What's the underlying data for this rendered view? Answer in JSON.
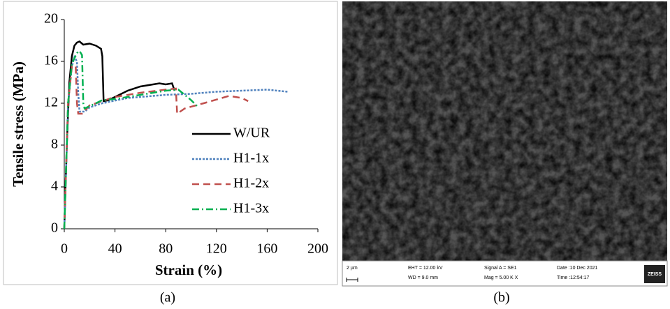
{
  "chart_data": {
    "type": "line",
    "xlabel": "Strain (%)",
    "ylabel": "Tensile stress (MPa)",
    "xlim": [
      0,
      200
    ],
    "ylim": [
      0,
      20
    ],
    "xticks": [
      0,
      40,
      80,
      120,
      160,
      200
    ],
    "yticks": [
      0,
      4,
      8,
      12,
      16,
      20
    ],
    "legend": "center right",
    "series": [
      {
        "name": "W/UR",
        "color": "#000000",
        "style": "solid",
        "x": [
          0,
          2,
          4,
          6,
          8,
          10,
          12,
          15,
          20,
          25,
          29,
          30,
          31,
          35,
          40,
          50,
          60,
          70,
          75,
          80,
          85,
          87
        ],
        "values": [
          0,
          8,
          14,
          16.5,
          17.5,
          17.8,
          17.9,
          17.6,
          17.7,
          17.5,
          17.2,
          16.5,
          12.2,
          12.3,
          12.6,
          13.2,
          13.6,
          13.8,
          13.9,
          13.8,
          13.9,
          13.2
        ]
      },
      {
        "name": "H1-1x",
        "color": "#4f81bd",
        "style": "dotted",
        "x": [
          0,
          3,
          6,
          8,
          10,
          11,
          12,
          16,
          20,
          30,
          50,
          80,
          100,
          120,
          140,
          160,
          176
        ],
        "values": [
          0,
          12,
          15.5,
          16.4,
          16,
          13,
          11.2,
          11.2,
          11.6,
          12,
          12.5,
          12.8,
          12.9,
          13.1,
          13.2,
          13.3,
          13.1
        ]
      },
      {
        "name": "H1-2x",
        "color": "#c0504d",
        "style": "dashed",
        "x": [
          0,
          3,
          6,
          9,
          10,
          11,
          14,
          20,
          40,
          60,
          80,
          88,
          89,
          95,
          110,
          130,
          140,
          145
        ],
        "values": [
          0,
          12,
          15.5,
          15.6,
          12,
          11,
          11,
          11.8,
          12.6,
          13,
          13.3,
          13.4,
          11,
          11.5,
          12,
          12.7,
          12.5,
          12.2
        ]
      },
      {
        "name": "H1-3x",
        "color": "#00b050",
        "style": "dashdot",
        "x": [
          0,
          3,
          6,
          10,
          12,
          14,
          15,
          16,
          25,
          30,
          40,
          60,
          80,
          90,
          95,
          100,
          105
        ],
        "values": [
          0,
          12,
          15.8,
          16.8,
          17,
          16.6,
          12,
          11.5,
          12,
          12.3,
          12.4,
          12.8,
          13.2,
          13.3,
          12.8,
          12.3,
          11.7
        ]
      }
    ]
  },
  "panel_labels": [
    "(a)",
    "(b)"
  ],
  "sem_info": {
    "scale": "2 µm",
    "eht": "EHT = 12.00 kV",
    "wd": "WD = 9.0 mm",
    "signal": "Signal A = SE1",
    "mag": "Mag =   5.00 K X",
    "date": "Date :10 Dec 2021",
    "time": "Time :12:54:17",
    "brand": "ZEISS"
  }
}
